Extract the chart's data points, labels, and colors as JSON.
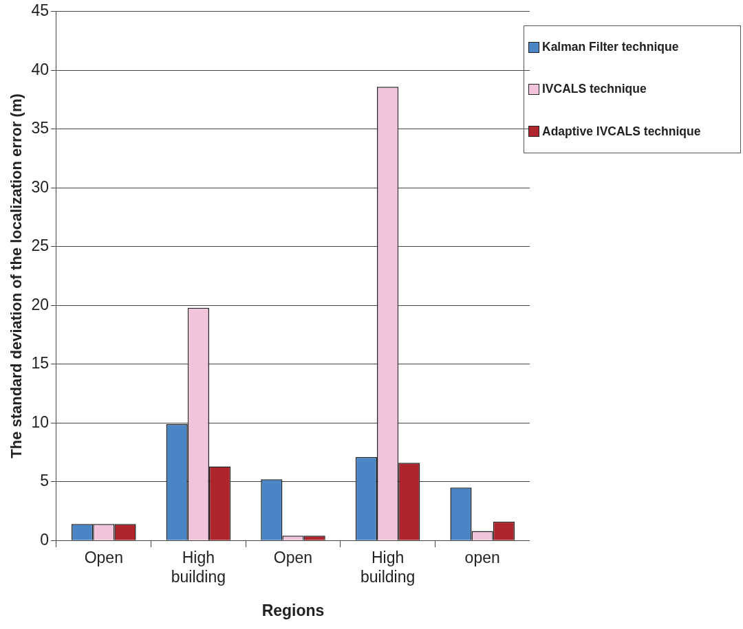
{
  "chart_data": {
    "type": "bar",
    "xlabel": "Regions",
    "ylabel": "The standard deviation of the localization error (m)",
    "categories": [
      "Open",
      "High building",
      "Open",
      "High building",
      "open"
    ],
    "series": [
      {
        "name": "Kalman Filter technique",
        "color": "#4a86c6",
        "values": [
          1.4,
          9.9,
          5.2,
          7.1,
          4.5
        ]
      },
      {
        "name": "IVCALS technique",
        "color": "#f2c4dc",
        "values": [
          1.4,
          19.8,
          0.4,
          38.6,
          0.8
        ]
      },
      {
        "name": "Adaptive IVCALS technique",
        "color": "#b0242c",
        "values": [
          1.4,
          6.3,
          0.4,
          6.6,
          1.6
        ]
      }
    ],
    "ylim": [
      0,
      45
    ],
    "yticks": [
      0,
      5,
      10,
      15,
      20,
      25,
      30,
      35,
      40,
      45
    ],
    "grid": "y",
    "legend": "top right"
  }
}
